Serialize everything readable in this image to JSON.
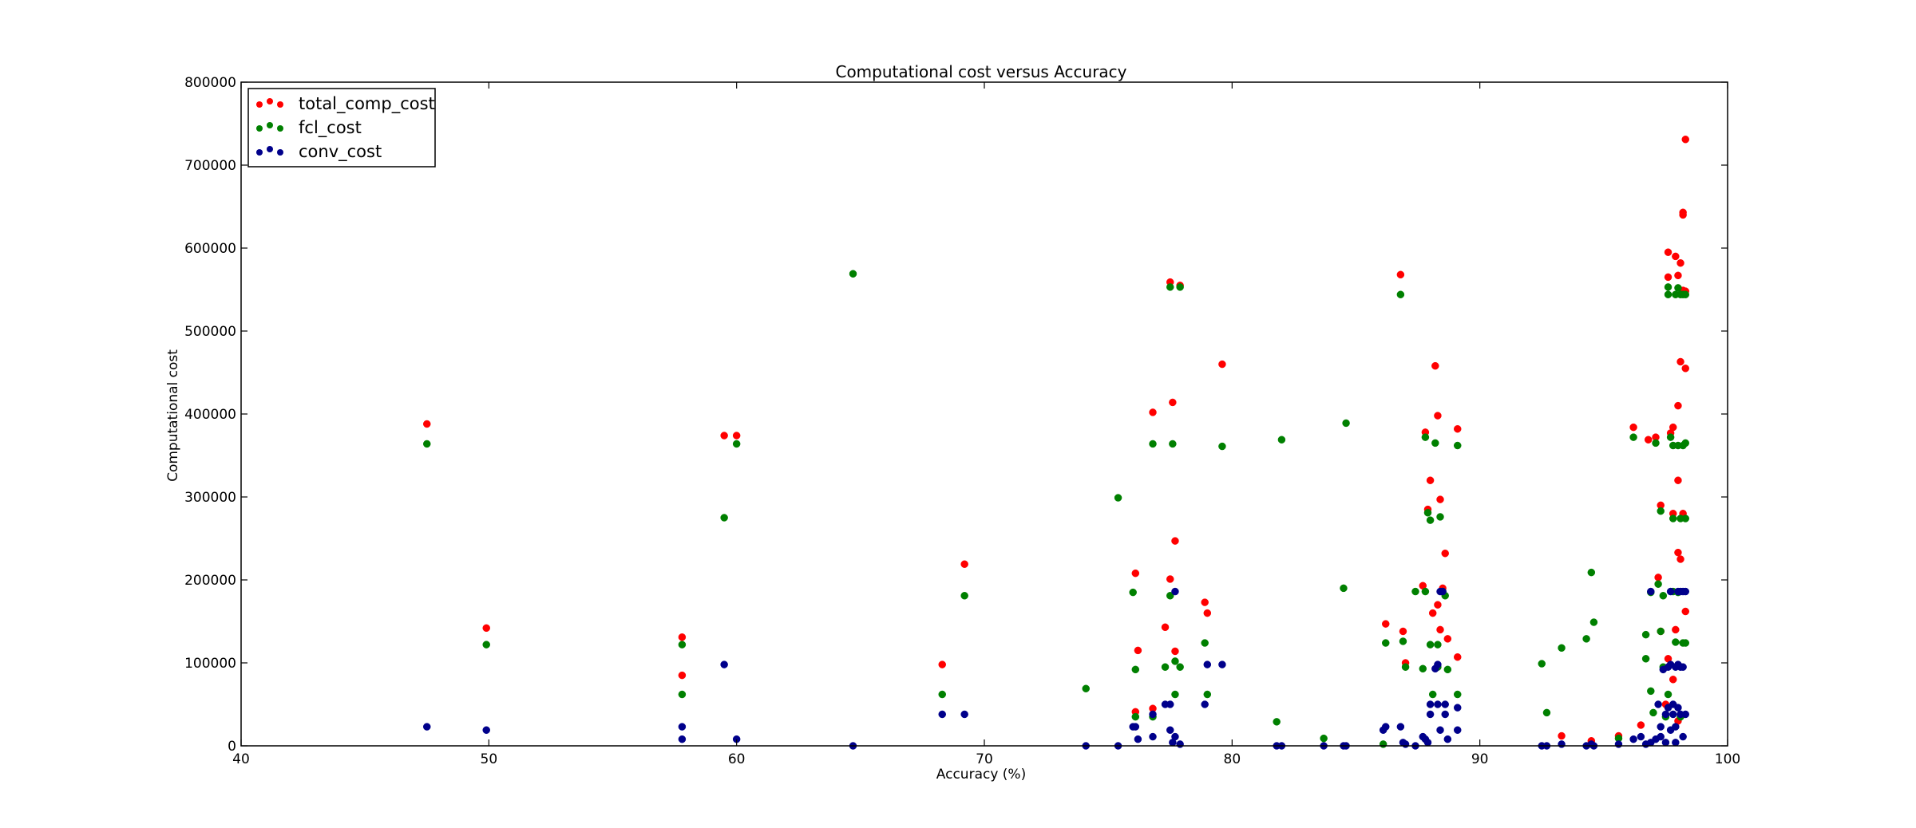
{
  "chart_data": {
    "type": "scatter",
    "title": "Computational cost versus Accuracy",
    "xlabel": "Accuracy (%)",
    "ylabel": "Computational cost",
    "xlim": [
      40,
      100
    ],
    "ylim": [
      0,
      800000
    ],
    "xticks": [
      40,
      50,
      60,
      70,
      80,
      90,
      100
    ],
    "yticks": [
      0,
      100000,
      200000,
      300000,
      400000,
      500000,
      600000,
      700000,
      800000
    ],
    "grid": false,
    "legend_position": "top-left",
    "series": [
      {
        "name": "total_comp_cost",
        "color": "#ff0000",
        "points": [
          [
            47.5,
            388000
          ],
          [
            49.9,
            142000
          ],
          [
            57.8,
            131000
          ],
          [
            57.8,
            85000
          ],
          [
            59.5,
            374000
          ],
          [
            60.0,
            374000
          ],
          [
            68.3,
            98000
          ],
          [
            69.2,
            219000
          ],
          [
            76.1,
            208000
          ],
          [
            76.2,
            115000
          ],
          [
            76.1,
            41000
          ],
          [
            76.8,
            402000
          ],
          [
            76.8,
            45000
          ],
          [
            77.3,
            143000
          ],
          [
            77.5,
            559000
          ],
          [
            77.5,
            201000
          ],
          [
            77.6,
            414000
          ],
          [
            77.7,
            247000
          ],
          [
            77.7,
            114000
          ],
          [
            77.9,
            555000
          ],
          [
            78.9,
            173000
          ],
          [
            79.0,
            160000
          ],
          [
            79.6,
            460000
          ],
          [
            86.2,
            147000
          ],
          [
            86.8,
            568000
          ],
          [
            86.9,
            138000
          ],
          [
            87.0,
            100000
          ],
          [
            87.7,
            193000
          ],
          [
            87.8,
            378000
          ],
          [
            87.9,
            285000
          ],
          [
            88.0,
            320000
          ],
          [
            88.1,
            160000
          ],
          [
            88.2,
            458000
          ],
          [
            88.3,
            398000
          ],
          [
            88.3,
            170000
          ],
          [
            88.4,
            297000
          ],
          [
            88.4,
            140000
          ],
          [
            88.5,
            190000
          ],
          [
            88.6,
            232000
          ],
          [
            88.7,
            129000
          ],
          [
            89.1,
            382000
          ],
          [
            89.1,
            107000
          ],
          [
            93.3,
            12000
          ],
          [
            94.5,
            6000
          ],
          [
            95.6,
            12000
          ],
          [
            96.2,
            384000
          ],
          [
            96.5,
            25000
          ],
          [
            96.8,
            369000
          ],
          [
            97.1,
            372000
          ],
          [
            97.3,
            290000
          ],
          [
            97.2,
            203000
          ],
          [
            97.3,
            138000
          ],
          [
            97.6,
            565000
          ],
          [
            97.6,
            595000
          ],
          [
            97.7,
            377000
          ],
          [
            97.8,
            384000
          ],
          [
            97.8,
            280000
          ],
          [
            97.9,
            590000
          ],
          [
            98.0,
            567000
          ],
          [
            98.0,
            410000
          ],
          [
            98.0,
            320000
          ],
          [
            98.0,
            233000
          ],
          [
            98.1,
            582000
          ],
          [
            98.1,
            463000
          ],
          [
            98.1,
            225000
          ],
          [
            98.2,
            643000
          ],
          [
            98.2,
            640000
          ],
          [
            98.2,
            549000
          ],
          [
            98.3,
            731000
          ],
          [
            98.3,
            455000
          ],
          [
            98.3,
            548000
          ],
          [
            98.2,
            280000
          ],
          [
            98.3,
            162000
          ],
          [
            97.9,
            140000
          ],
          [
            97.6,
            105000
          ],
          [
            97.8,
            80000
          ],
          [
            97.5,
            50000
          ],
          [
            98.0,
            30000
          ]
        ]
      },
      {
        "name": "fcl_cost",
        "color": "#008000",
        "points": [
          [
            47.5,
            364000
          ],
          [
            49.9,
            122000
          ],
          [
            57.8,
            122000
          ],
          [
            57.8,
            62000
          ],
          [
            59.5,
            275000
          ],
          [
            60.0,
            364000
          ],
          [
            64.7,
            569000
          ],
          [
            68.3,
            62000
          ],
          [
            69.2,
            181000
          ],
          [
            74.1,
            69000
          ],
          [
            75.4,
            299000
          ],
          [
            76.0,
            185000
          ],
          [
            76.1,
            92000
          ],
          [
            76.1,
            35000
          ],
          [
            76.8,
            364000
          ],
          [
            76.8,
            35000
          ],
          [
            77.3,
            95000
          ],
          [
            77.5,
            553000
          ],
          [
            77.5,
            181000
          ],
          [
            77.6,
            364000
          ],
          [
            77.7,
            102000
          ],
          [
            77.7,
            62000
          ],
          [
            77.9,
            553000
          ],
          [
            77.9,
            95000
          ],
          [
            78.9,
            124000
          ],
          [
            79.0,
            62000
          ],
          [
            79.6,
            361000
          ],
          [
            81.8,
            29000
          ],
          [
            82.0,
            369000
          ],
          [
            83.7,
            9000
          ],
          [
            84.5,
            190000
          ],
          [
            84.6,
            389000
          ],
          [
            86.1,
            2000
          ],
          [
            86.2,
            124000
          ],
          [
            86.8,
            544000
          ],
          [
            86.9,
            126000
          ],
          [
            87.0,
            95000
          ],
          [
            87.4,
            186000
          ],
          [
            87.7,
            93000
          ],
          [
            87.8,
            186000
          ],
          [
            87.8,
            372000
          ],
          [
            87.9,
            281000
          ],
          [
            88.0,
            272000
          ],
          [
            88.0,
            122000
          ],
          [
            88.1,
            62000
          ],
          [
            88.2,
            365000
          ],
          [
            88.3,
            122000
          ],
          [
            88.3,
            95000
          ],
          [
            88.4,
            276000
          ],
          [
            88.5,
            186000
          ],
          [
            88.6,
            181000
          ],
          [
            88.7,
            92000
          ],
          [
            89.1,
            362000
          ],
          [
            89.1,
            62000
          ],
          [
            92.5,
            99000
          ],
          [
            92.7,
            40000
          ],
          [
            93.3,
            118000
          ],
          [
            94.3,
            129000
          ],
          [
            94.5,
            209000
          ],
          [
            94.6,
            149000
          ],
          [
            95.6,
            9000
          ],
          [
            96.2,
            372000
          ],
          [
            96.7,
            105000
          ],
          [
            96.7,
            134000
          ],
          [
            96.9,
            185000
          ],
          [
            96.9,
            66000
          ],
          [
            97.1,
            365000
          ],
          [
            97.2,
            195000
          ],
          [
            97.3,
            283000
          ],
          [
            97.3,
            138000
          ],
          [
            97.4,
            95000
          ],
          [
            97.6,
            553000
          ],
          [
            97.6,
            544000
          ],
          [
            97.7,
            372000
          ],
          [
            97.8,
            362000
          ],
          [
            97.8,
            274000
          ],
          [
            97.9,
            544000
          ],
          [
            97.9,
            125000
          ],
          [
            98.0,
            552000
          ],
          [
            98.0,
            362000
          ],
          [
            98.0,
            185000
          ],
          [
            98.1,
            544000
          ],
          [
            98.1,
            274000
          ],
          [
            98.2,
            544000
          ],
          [
            98.2,
            362000
          ],
          [
            98.2,
            124000
          ],
          [
            98.3,
            544000
          ],
          [
            98.3,
            365000
          ],
          [
            98.3,
            274000
          ],
          [
            98.3,
            124000
          ],
          [
            97.6,
            62000
          ],
          [
            97.5,
            35000
          ],
          [
            98.1,
            35000
          ],
          [
            97.0,
            40000
          ],
          [
            97.4,
            181000
          ],
          [
            97.8,
            186000
          ]
        ]
      },
      {
        "name": "conv_cost",
        "color": "#00008b",
        "points": [
          [
            47.5,
            23000
          ],
          [
            49.9,
            19000
          ],
          [
            57.8,
            23000
          ],
          [
            57.8,
            8000
          ],
          [
            59.5,
            98000
          ],
          [
            60.0,
            8000
          ],
          [
            64.7,
            0
          ],
          [
            68.3,
            38000
          ],
          [
            69.2,
            38000
          ],
          [
            74.1,
            0
          ],
          [
            75.4,
            0
          ],
          [
            76.0,
            23000
          ],
          [
            76.1,
            23000
          ],
          [
            76.2,
            8000
          ],
          [
            76.8,
            38000
          ],
          [
            76.8,
            11000
          ],
          [
            77.3,
            50000
          ],
          [
            77.5,
            50000
          ],
          [
            77.5,
            19000
          ],
          [
            77.6,
            4000
          ],
          [
            77.7,
            186000
          ],
          [
            77.7,
            11000
          ],
          [
            77.9,
            2000
          ],
          [
            78.9,
            50000
          ],
          [
            79.0,
            98000
          ],
          [
            79.6,
            98000
          ],
          [
            81.8,
            0
          ],
          [
            82.0,
            0
          ],
          [
            83.7,
            0
          ],
          [
            84.5,
            0
          ],
          [
            84.6,
            0
          ],
          [
            86.1,
            19000
          ],
          [
            86.2,
            23000
          ],
          [
            86.8,
            23000
          ],
          [
            86.9,
            4000
          ],
          [
            87.0,
            2000
          ],
          [
            87.4,
            0
          ],
          [
            87.7,
            11000
          ],
          [
            87.8,
            8000
          ],
          [
            87.9,
            4000
          ],
          [
            88.0,
            50000
          ],
          [
            88.0,
            38000
          ],
          [
            88.2,
            93000
          ],
          [
            88.3,
            98000
          ],
          [
            88.3,
            50000
          ],
          [
            88.4,
            186000
          ],
          [
            88.4,
            19000
          ],
          [
            88.5,
            186000
          ],
          [
            88.6,
            50000
          ],
          [
            88.6,
            38000
          ],
          [
            88.7,
            8000
          ],
          [
            89.1,
            46000
          ],
          [
            89.1,
            19000
          ],
          [
            92.5,
            0
          ],
          [
            92.7,
            0
          ],
          [
            93.3,
            2000
          ],
          [
            94.3,
            0
          ],
          [
            94.5,
            2000
          ],
          [
            94.6,
            0
          ],
          [
            95.6,
            2000
          ],
          [
            96.2,
            8000
          ],
          [
            96.5,
            11000
          ],
          [
            96.7,
            2000
          ],
          [
            96.9,
            186000
          ],
          [
            96.9,
            4000
          ],
          [
            97.1,
            8000
          ],
          [
            97.2,
            50000
          ],
          [
            97.3,
            23000
          ],
          [
            97.3,
            11000
          ],
          [
            97.4,
            92000
          ],
          [
            97.5,
            38000
          ],
          [
            97.6,
            95000
          ],
          [
            97.6,
            46000
          ],
          [
            97.7,
            186000
          ],
          [
            97.7,
            98000
          ],
          [
            97.7,
            19000
          ],
          [
            97.8,
            50000
          ],
          [
            97.8,
            38000
          ],
          [
            97.9,
            95000
          ],
          [
            97.9,
            23000
          ],
          [
            98.0,
            186000
          ],
          [
            98.0,
            98000
          ],
          [
            98.0,
            46000
          ],
          [
            98.1,
            186000
          ],
          [
            98.1,
            95000
          ],
          [
            98.1,
            38000
          ],
          [
            98.2,
            186000
          ],
          [
            98.2,
            95000
          ],
          [
            98.2,
            11000
          ],
          [
            98.3,
            186000
          ],
          [
            98.3,
            38000
          ],
          [
            97.5,
            4000
          ],
          [
            97.9,
            4000
          ]
        ]
      }
    ]
  }
}
